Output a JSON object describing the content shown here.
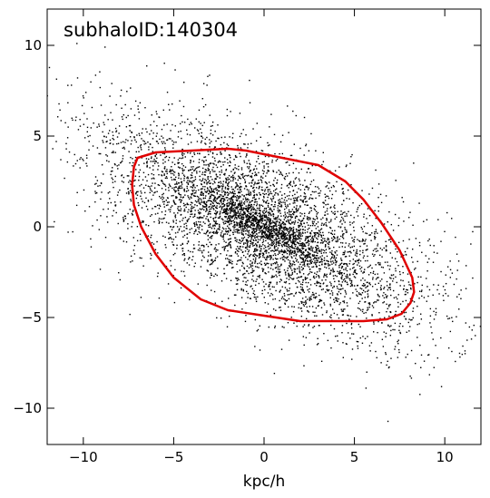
{
  "chart_data": {
    "type": "scatter",
    "title": "",
    "annotation": "subhaloID:140304",
    "xlabel": "kpc/h",
    "ylabel": "",
    "xlim": [
      -12,
      12
    ],
    "ylim": [
      -12,
      12
    ],
    "xticks": [
      -10,
      -5,
      0,
      5,
      10
    ],
    "yticks": [
      -10,
      -5,
      0,
      5,
      10
    ],
    "xtick_labels": [
      "−10",
      "−5",
      "0",
      "5",
      "10"
    ],
    "ytick_labels": [
      "−10",
      "−5",
      "0",
      "5",
      "10"
    ],
    "grid": false,
    "legend": "none",
    "point_color": "#000000",
    "contour_color": "#e00000",
    "particle_distribution": {
      "description_free": true,
      "count": 4500,
      "center": [
        0,
        0
      ],
      "major_axis_angle_deg": -28,
      "sigma_major": 5.2,
      "sigma_minor": 2.0,
      "core_count": 900,
      "core_sigma_major": 2.2,
      "core_sigma_minor": 0.45
    },
    "series": [
      {
        "kind": "contour",
        "x": [
          -7.0,
          -6.0,
          -4.0,
          -2.0,
          -1.0,
          0.0,
          1.5,
          3.0,
          4.5,
          5.5,
          6.5,
          7.5,
          8.2,
          8.3,
          8.1,
          7.6,
          6.8,
          5.5,
          4.0,
          2.0,
          0.0,
          -2.0,
          -3.5,
          -5.0,
          -6.0,
          -6.8,
          -7.2,
          -7.3,
          -7.2,
          -7.0
        ],
        "y": [
          3.8,
          4.1,
          4.2,
          4.3,
          4.2,
          4.0,
          3.7,
          3.4,
          2.5,
          1.5,
          0.2,
          -1.3,
          -2.8,
          -3.6,
          -4.2,
          -4.8,
          -5.1,
          -5.2,
          -5.2,
          -5.2,
          -4.9,
          -4.6,
          -4.0,
          -2.8,
          -1.5,
          0.0,
          1.2,
          2.3,
          3.3,
          3.8
        ]
      }
    ]
  }
}
